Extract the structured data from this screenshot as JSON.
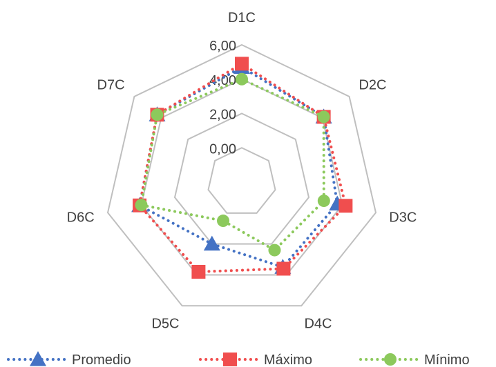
{
  "chart_data": {
    "type": "radar",
    "title": "",
    "categories": [
      "D1C",
      "D2C",
      "D3C",
      "D4C",
      "D5C",
      "D6C",
      "D7C"
    ],
    "rlim": [
      -2,
      6
    ],
    "ticks": [
      0,
      2,
      4,
      6
    ],
    "tick_labels": [
      "0,00",
      "2,00",
      "4,00",
      "6,00"
    ],
    "grid": true,
    "legend_position": "bottom",
    "series": [
      {
        "name": "Promedio",
        "values": [
          4.7,
          4.1,
          3.7,
          3.5,
          2.0,
          4.1,
          4.3
        ],
        "color": "#4472C4",
        "marker": "triangle"
      },
      {
        "name": "Máximo",
        "values": [
          4.9,
          4.1,
          4.2,
          3.6,
          3.8,
          4.1,
          4.3
        ],
        "color": "#F04E4E",
        "marker": "square"
      },
      {
        "name": "Mínimo",
        "values": [
          4.0,
          4.1,
          2.9,
          2.4,
          0.5,
          4.0,
          4.3
        ],
        "color": "#8CC95C",
        "marker": "circle"
      }
    ]
  }
}
